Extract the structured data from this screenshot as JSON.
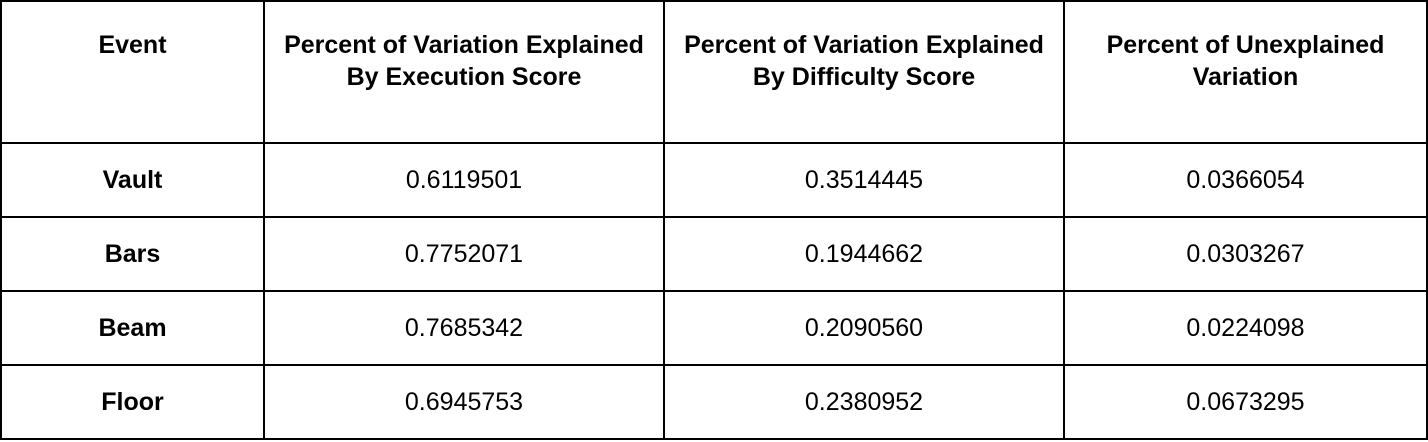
{
  "table": {
    "headers": [
      "Event",
      "Percent of Variation Explained By Execution Score",
      "Percent of Variation Explained By Difficulty Score",
      "Percent of Unexplained Variation"
    ],
    "rows": [
      {
        "event": "Vault",
        "execution": "0.6119501",
        "difficulty": "0.3514445",
        "unexplained": "0.0366054"
      },
      {
        "event": "Bars",
        "execution": "0.7752071",
        "difficulty": "0.1944662",
        "unexplained": "0.0303267"
      },
      {
        "event": "Beam",
        "execution": "0.7685342",
        "difficulty": "0.2090560",
        "unexplained": "0.0224098"
      },
      {
        "event": "Floor",
        "execution": "0.6945753",
        "difficulty": "0.2380952",
        "unexplained": "0.0673295"
      }
    ]
  }
}
